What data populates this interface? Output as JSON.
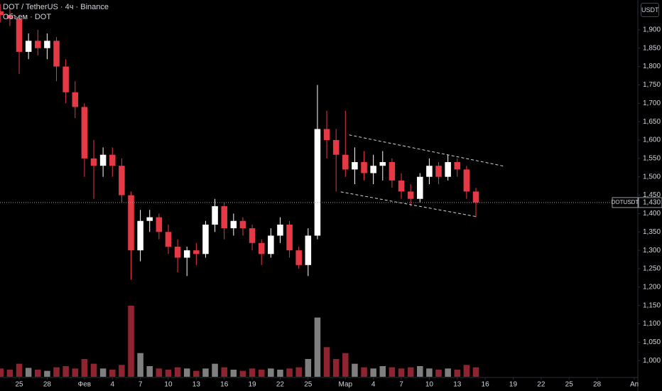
{
  "chart_data": {
    "type": "candlestick",
    "title": "DOT / TetherUS · 4ч · Binance",
    "volume_title": "Объем · DOT",
    "currency": "USDT",
    "symbol": "DOTUSDT",
    "last_price": {
      "value": 1.43,
      "label": "1,430"
    },
    "up_color": "#ffffff",
    "down_color": "#e53945",
    "volume_up_color": "#7f7f7f",
    "volume_down_color": "#8e2430",
    "x": [
      -2,
      -1,
      0,
      1,
      2,
      3,
      4,
      5,
      6,
      7,
      8,
      9,
      10,
      11,
      12,
      13,
      14,
      15,
      16,
      17,
      18,
      19,
      20,
      21,
      22,
      23,
      24,
      25,
      26,
      27,
      28,
      29,
      30,
      31,
      32,
      33,
      34,
      35,
      36,
      37,
      38,
      39,
      40,
      41,
      42,
      43,
      44,
      45,
      46,
      47,
      48,
      49
    ],
    "open": [
      1.95,
      1.94,
      1.93,
      1.84,
      1.87,
      1.85,
      1.87,
      1.8,
      1.73,
      1.69,
      1.55,
      1.53,
      1.56,
      1.53,
      1.45,
      1.3,
      1.38,
      1.39,
      1.35,
      1.31,
      1.28,
      1.3,
      1.29,
      1.37,
      1.42,
      1.36,
      1.38,
      1.36,
      1.32,
      1.29,
      1.34,
      1.37,
      1.3,
      1.26,
      1.34,
      1.63,
      1.6,
      1.56,
      1.52,
      1.54,
      1.51,
      1.53,
      1.54,
      1.49,
      1.46,
      1.44,
      1.5,
      1.53,
      1.5,
      1.54,
      1.52,
      1.46
    ],
    "high": [
      1.97,
      1.96,
      1.94,
      1.89,
      1.9,
      1.89,
      1.88,
      1.82,
      1.76,
      1.7,
      1.6,
      1.58,
      1.58,
      1.55,
      1.46,
      1.41,
      1.41,
      1.4,
      1.37,
      1.33,
      1.31,
      1.32,
      1.38,
      1.44,
      1.43,
      1.4,
      1.39,
      1.37,
      1.33,
      1.36,
      1.39,
      1.38,
      1.31,
      1.36,
      1.75,
      1.68,
      1.63,
      1.68,
      1.58,
      1.57,
      1.56,
      1.57,
      1.55,
      1.51,
      1.48,
      1.51,
      1.55,
      1.54,
      1.56,
      1.55,
      1.53,
      1.47
    ],
    "low": [
      1.92,
      1.91,
      1.78,
      1.82,
      1.83,
      1.82,
      1.76,
      1.7,
      1.66,
      1.5,
      1.44,
      1.5,
      1.5,
      1.43,
      1.22,
      1.27,
      1.35,
      1.33,
      1.29,
      1.24,
      1.23,
      1.26,
      1.28,
      1.35,
      1.33,
      1.34,
      1.34,
      1.3,
      1.26,
      1.28,
      1.32,
      1.28,
      1.25,
      1.23,
      1.33,
      1.55,
      1.46,
      1.5,
      1.48,
      1.49,
      1.48,
      1.49,
      1.47,
      1.44,
      1.42,
      1.43,
      1.48,
      1.48,
      1.49,
      1.5,
      1.44,
      1.39
    ],
    "close": [
      1.94,
      1.93,
      1.84,
      1.87,
      1.85,
      1.87,
      1.8,
      1.73,
      1.69,
      1.55,
      1.53,
      1.56,
      1.53,
      1.45,
      1.3,
      1.38,
      1.39,
      1.35,
      1.31,
      1.28,
      1.3,
      1.29,
      1.37,
      1.42,
      1.36,
      1.38,
      1.36,
      1.32,
      1.29,
      1.34,
      1.37,
      1.3,
      1.26,
      1.34,
      1.63,
      1.6,
      1.56,
      1.52,
      1.54,
      1.51,
      1.53,
      1.54,
      1.49,
      1.46,
      1.44,
      1.5,
      1.53,
      1.5,
      1.54,
      1.52,
      1.46,
      1.43
    ],
    "volume": [
      14,
      12,
      22,
      15,
      12,
      10,
      16,
      18,
      14,
      30,
      22,
      14,
      12,
      20,
      120,
      40,
      18,
      14,
      12,
      16,
      14,
      10,
      14,
      22,
      16,
      12,
      10,
      14,
      12,
      14,
      12,
      14,
      16,
      30,
      100,
      50,
      30,
      40,
      22,
      16,
      14,
      18,
      16,
      14,
      16,
      18,
      14,
      12,
      14,
      12,
      20,
      16
    ],
    "trendlines": [
      {
        "x": [
          35.4,
          52.0
        ],
        "y": [
          1.614,
          1.529
        ]
      },
      {
        "x": [
          34.5,
          49.2
        ],
        "y": [
          1.459,
          1.391
        ]
      }
    ],
    "xlim": [
      -2.06,
      66.3
    ],
    "ylim": [
      0.956,
      1.981
    ],
    "yticks": [
      {
        "value": 1.0,
        "label": "1,000"
      },
      {
        "value": 1.05,
        "label": "1,050"
      },
      {
        "value": 1.1,
        "label": "1,100"
      },
      {
        "value": 1.15,
        "label": "1,150"
      },
      {
        "value": 1.2,
        "label": "1,200"
      },
      {
        "value": 1.25,
        "label": "1,250"
      },
      {
        "value": 1.3,
        "label": "1,300"
      },
      {
        "value": 1.35,
        "label": "1,350"
      },
      {
        "value": 1.4,
        "label": "1,400"
      },
      {
        "value": 1.45,
        "label": "1,450"
      },
      {
        "value": 1.5,
        "label": "1,500"
      },
      {
        "value": 1.55,
        "label": "1,550"
      },
      {
        "value": 1.6,
        "label": "1,600"
      },
      {
        "value": 1.65,
        "label": "1,650"
      },
      {
        "value": 1.7,
        "label": "1,700"
      },
      {
        "value": 1.75,
        "label": "1,750"
      },
      {
        "value": 1.8,
        "label": "1,800"
      },
      {
        "value": 1.85,
        "label": "1,850"
      },
      {
        "value": 1.9,
        "label": "1,900"
      }
    ],
    "xticks": [
      {
        "value": 0,
        "label": "25"
      },
      {
        "value": 3,
        "label": "28"
      },
      {
        "value": 7,
        "label": "Фев"
      },
      {
        "value": 10,
        "label": "4"
      },
      {
        "value": 13,
        "label": "7"
      },
      {
        "value": 16,
        "label": "10"
      },
      {
        "value": 19,
        "label": "13"
      },
      {
        "value": 22,
        "label": "16"
      },
      {
        "value": 25,
        "label": "19"
      },
      {
        "value": 28,
        "label": "22"
      },
      {
        "value": 31,
        "label": "25"
      },
      {
        "value": 35,
        "label": "Мар"
      },
      {
        "value": 38,
        "label": "4"
      },
      {
        "value": 41,
        "label": "7"
      },
      {
        "value": 44,
        "label": "10"
      },
      {
        "value": 47,
        "label": "13"
      },
      {
        "value": 50,
        "label": "16"
      },
      {
        "value": 53,
        "label": "19"
      },
      {
        "value": 56,
        "label": "22"
      },
      {
        "value": 59,
        "label": "25"
      },
      {
        "value": 62,
        "label": "28"
      },
      {
        "value": 66,
        "label": "Ап"
      }
    ],
    "grid": false
  }
}
